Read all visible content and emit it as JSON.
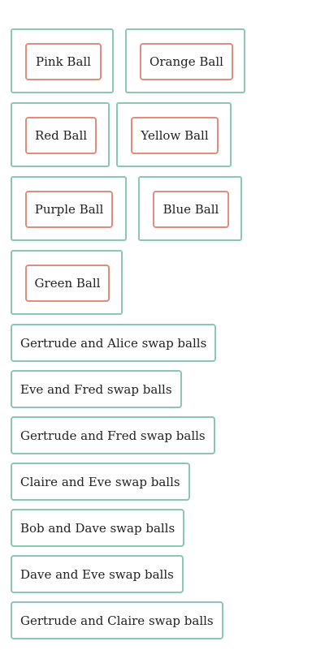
{
  "balls": {
    "pink": "Pink Ball",
    "orange": "Orange Ball",
    "red": "Red Ball",
    "yellow": "Yellow Ball",
    "purple": "Purple Ball",
    "blue": "Blue Ball",
    "green": "Green Ball"
  },
  "swaps": [
    "Gertrude and Alice swap balls",
    "Eve and Fred swap balls",
    "Gertrude and Fred swap balls",
    "Claire and Eve swap balls",
    "Bob and Dave swap balls",
    "Dave and Eve swap balls",
    "Gertrude and Claire swap balls"
  ],
  "colors": {
    "card_border": "#8cc7b1",
    "ball_border": "#e38b7d"
  }
}
